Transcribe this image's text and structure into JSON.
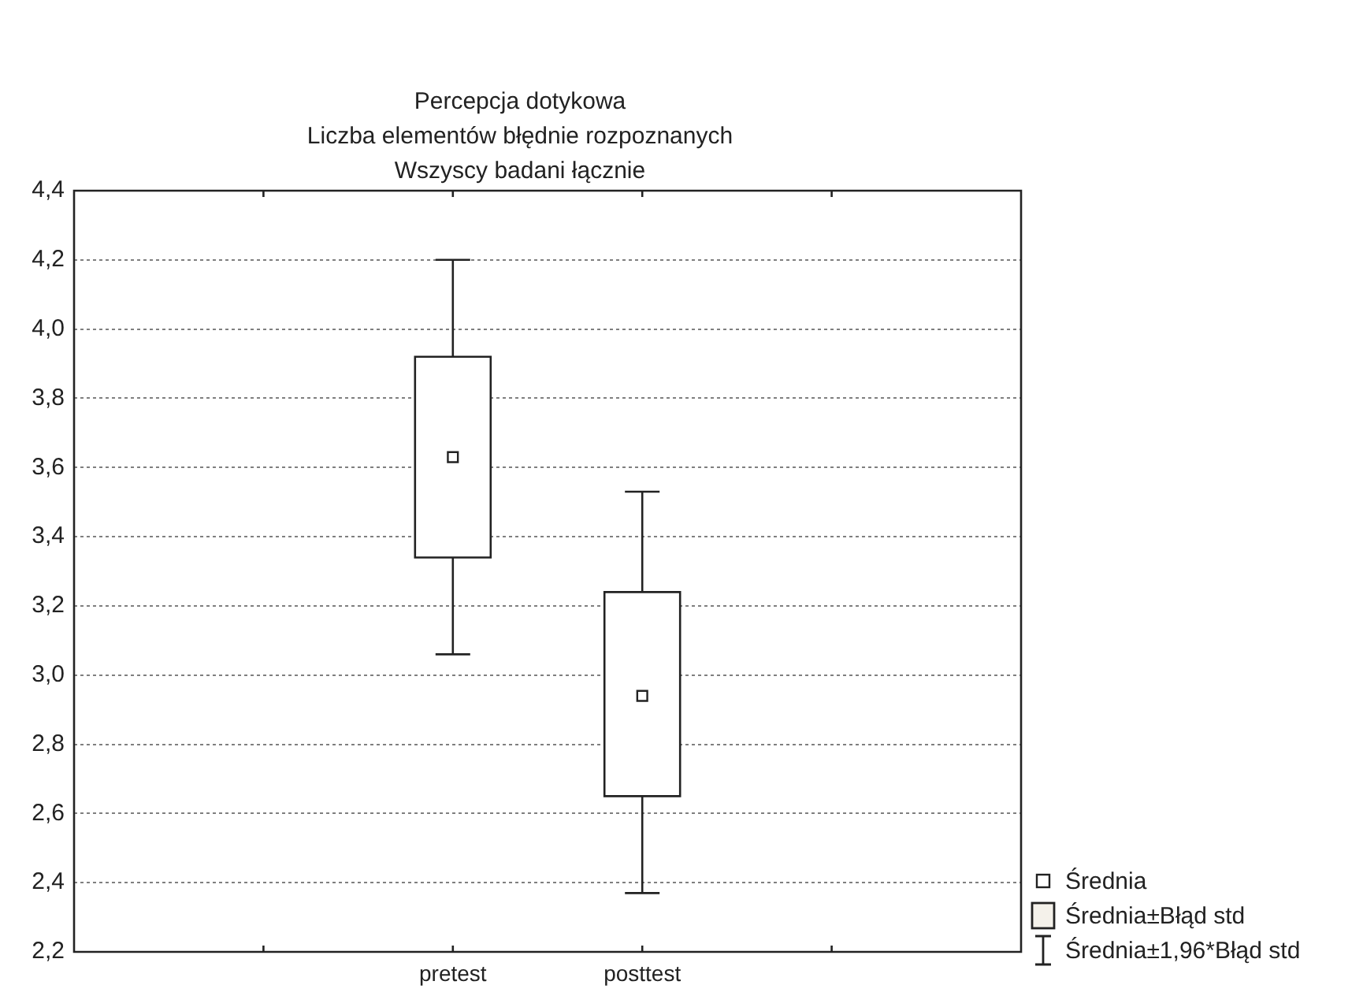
{
  "chart_data": {
    "type": "box",
    "title": "Percepcja dotykowa",
    "subtitle": "Liczba elementów błędnie rozpoznanych\nWszyscy badani łącznie",
    "categories": [
      null,
      null,
      "pretest",
      "posttest",
      null,
      null
    ],
    "boxes": [
      null,
      null,
      {
        "low": 3.06,
        "q1": 3.34,
        "q3": 3.92,
        "high": 4.2,
        "mean": 3.63
      },
      {
        "low": 2.37,
        "q1": 2.65,
        "q3": 3.24,
        "high": 3.53,
        "mean": 2.94
      },
      null,
      null
    ],
    "ylim": [
      2.2,
      4.4
    ],
    "yticks": [
      {
        "value": 2.2,
        "label": "2,2"
      },
      {
        "value": 2.4,
        "label": "2,4"
      },
      {
        "value": 2.6,
        "label": "2,6"
      },
      {
        "value": 2.8,
        "label": "2,8"
      },
      {
        "value": 3.0,
        "label": "3,0"
      },
      {
        "value": 3.2,
        "label": "3,2"
      },
      {
        "value": 3.4,
        "label": "3,4"
      },
      {
        "value": 3.6,
        "label": "3,6"
      },
      {
        "value": 3.8,
        "label": "3,8"
      },
      {
        "value": 4.0,
        "label": "4,0"
      },
      {
        "value": 4.2,
        "label": "4,2"
      },
      {
        "value": 4.4,
        "label": "4,4"
      }
    ],
    "grid": "y",
    "marker": "square",
    "annotations": [
      "Średnia",
      "Średnia±Błąd std",
      "Średnia±1,96*Błąd std"
    ]
  }
}
